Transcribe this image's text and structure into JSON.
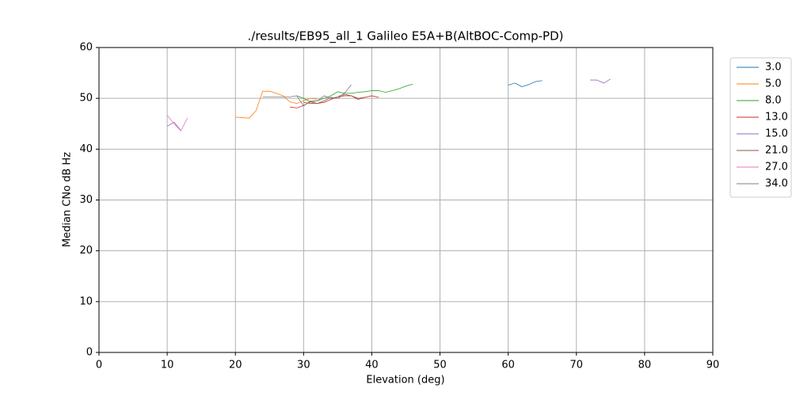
{
  "chart_data": {
    "type": "line",
    "title": "./results/EB95_all_1 Galileo E5A+B(AltBOC-Comp-PD)",
    "x_label": "Elevation (deg)",
    "y_label": "Median CNo dB Hz",
    "xlim": [
      0,
      90
    ],
    "ylim": [
      0,
      60
    ],
    "xticks": [
      0,
      10,
      20,
      30,
      40,
      50,
      60,
      70,
      80,
      90
    ],
    "yticks": [
      0,
      10,
      20,
      30,
      40,
      50,
      60
    ],
    "grid": true,
    "legend": "outside-right",
    "series": [
      {
        "name": "3.0",
        "color": "#1f77b4",
        "x": [
          60,
          61,
          62,
          63,
          64,
          65
        ],
        "values": [
          52.6,
          53.0,
          52.3,
          52.7,
          53.3,
          53.5
        ]
      },
      {
        "name": "5.0",
        "color": "#ff7f0e",
        "x": [
          20,
          21,
          22,
          23,
          24,
          25,
          26,
          27,
          28,
          29,
          30,
          31,
          32
        ],
        "values": [
          46.3,
          46.2,
          46.1,
          47.5,
          51.4,
          51.4,
          51.0,
          50.5,
          49.3,
          49.0,
          49.5,
          50.0,
          49.8
        ]
      },
      {
        "name": "8.0",
        "color": "#2ca02c",
        "x": [
          29,
          30,
          31,
          32,
          33,
          34,
          35,
          36,
          37,
          38,
          39,
          40,
          41,
          42,
          43,
          44,
          45,
          46
        ],
        "values": [
          50.5,
          50.0,
          49.3,
          49.5,
          50.0,
          50.5,
          51.3,
          51.0,
          51.0,
          51.2,
          51.3,
          51.5,
          51.5,
          51.2,
          51.5,
          51.9,
          52.4,
          52.8
        ]
      },
      {
        "name": "13.0",
        "color": "#d62728",
        "x": [
          28,
          29,
          30,
          31,
          32,
          33,
          34,
          35,
          36,
          37,
          38,
          39,
          40,
          41
        ],
        "values": [
          48.3,
          48.1,
          48.6,
          49.3,
          49.0,
          49.2,
          49.8,
          50.3,
          50.5,
          50.5,
          49.8,
          50.2,
          50.5,
          50.2
        ]
      },
      {
        "name": "15.0",
        "color": "#9467bd",
        "x": [
          10,
          11,
          12,
          13,
          72,
          73,
          74,
          75
        ],
        "values": [
          44.5,
          45.3,
          43.7,
          null,
          53.6,
          53.6,
          53.0,
          53.8
        ]
      },
      {
        "name": "21.0",
        "color": "#8c564b",
        "x": [
          30,
          31,
          32,
          33,
          34,
          35,
          36,
          37,
          38,
          39
        ],
        "values": [
          49.2,
          49.0,
          49.0,
          49.5,
          50.2,
          50.0,
          50.8,
          50.5,
          50.0,
          50.2
        ]
      },
      {
        "name": "27.0",
        "color": "#e377c2",
        "x": [
          10,
          11,
          12,
          13
        ],
        "values": [
          46.7,
          45.0,
          43.6,
          46.2
        ]
      },
      {
        "name": "34.0",
        "color": "#7f7f7f",
        "x": [
          24,
          25,
          26,
          27,
          28,
          29,
          30,
          31,
          32,
          33,
          34,
          35,
          36,
          37
        ],
        "values": [
          50.3,
          50.3,
          50.3,
          50.3,
          50.3,
          50.5,
          48.5,
          49.5,
          49.5,
          50.5,
          50.0,
          50.3,
          51.0,
          52.7
        ]
      }
    ]
  }
}
